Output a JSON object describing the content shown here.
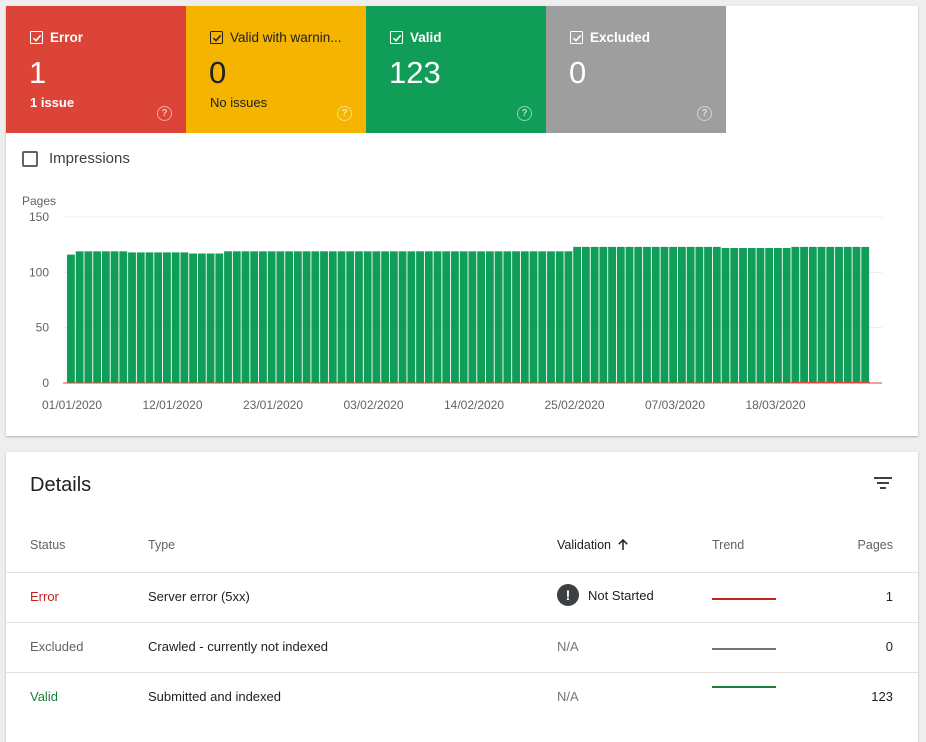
{
  "summary": {
    "tiles": [
      {
        "label": "Error",
        "count": "1",
        "sub": "1 issue",
        "color": "#db4437"
      },
      {
        "label": "Valid with warnin...",
        "count": "0",
        "sub": "No issues",
        "color": "#f4b400"
      },
      {
        "label": "Valid",
        "count": "123",
        "sub": "",
        "color": "#0f9d58"
      },
      {
        "label": "Excluded",
        "count": "0",
        "sub": "",
        "color": "#9e9e9e"
      }
    ],
    "help_glyph": "?"
  },
  "impressions": {
    "label": "Impressions",
    "checked": false
  },
  "chart_data": {
    "type": "bar",
    "ylabel": "Pages",
    "ylim": [
      0,
      150
    ],
    "yticks": [
      0,
      50,
      100,
      150
    ],
    "xtick_labels": [
      "01/01/2020",
      "12/01/2020",
      "23/01/2020",
      "03/02/2020",
      "14/02/2020",
      "25/02/2020",
      "07/03/2020",
      "18/03/2020"
    ],
    "series": [
      {
        "name": "Valid",
        "color": "#0f9d58",
        "values": [
          116,
          119,
          119,
          119,
          119,
          119,
          119,
          118,
          118,
          118,
          118,
          118,
          118,
          118,
          117,
          117,
          117,
          117,
          119,
          119,
          119,
          119,
          119,
          119,
          119,
          119,
          119,
          119,
          119,
          119,
          119,
          119,
          119,
          119,
          119,
          119,
          119,
          119,
          119,
          119,
          119,
          119,
          119,
          119,
          119,
          119,
          119,
          119,
          119,
          119,
          119,
          119,
          119,
          119,
          119,
          119,
          119,
          119,
          123,
          123,
          123,
          123,
          123,
          123,
          123,
          123,
          123,
          123,
          123,
          123,
          123,
          123,
          123,
          123,
          123,
          122,
          122,
          122,
          122,
          122,
          122,
          122,
          122,
          123,
          123,
          123,
          123,
          123,
          123,
          123,
          123,
          123
        ]
      },
      {
        "name": "Error",
        "color": "#db4437",
        "values": [
          0,
          0,
          0,
          0,
          0,
          0,
          0,
          0,
          0,
          0,
          0,
          0,
          0,
          0,
          0,
          0,
          0,
          0,
          0,
          0,
          0,
          0,
          0,
          0,
          0,
          0,
          0,
          0,
          0,
          0,
          0,
          0,
          0,
          0,
          0,
          0,
          0,
          0,
          0,
          0,
          0,
          0,
          0,
          0,
          0,
          0,
          0,
          0,
          0,
          0,
          0,
          0,
          0,
          0,
          0,
          0,
          0,
          0,
          0,
          0,
          0,
          0,
          0,
          0,
          0,
          0,
          0,
          0,
          0,
          0,
          0,
          0,
          0,
          0,
          0,
          0,
          0,
          0,
          0,
          0,
          0,
          0,
          0,
          1,
          1,
          1,
          1,
          1,
          1,
          1,
          1,
          1
        ]
      }
    ]
  },
  "details": {
    "title": "Details",
    "columns": {
      "status": "Status",
      "type": "Type",
      "validation": "Validation",
      "trend": "Trend",
      "pages": "Pages"
    },
    "rows": [
      {
        "status": "Error",
        "status_color": "#c5221f",
        "type": "Server error (5xx)",
        "validation": "Not Started",
        "pages": "1",
        "trend_color": "#c5221f"
      },
      {
        "status": "Excluded",
        "status_color": "#5f6368",
        "type": "Crawled - currently not indexed",
        "validation": "N/A",
        "pages": "0",
        "trend_color": "#757575"
      },
      {
        "status": "Valid",
        "status_color": "#188038",
        "type": "Submitted and indexed",
        "validation": "N/A",
        "pages": "123",
        "trend_color": "#188038"
      }
    ],
    "warning_glyph": "!"
  }
}
